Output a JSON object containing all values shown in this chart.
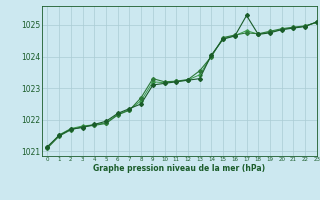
{
  "bg_color": "#cce8f0",
  "grid_color": "#aaccd4",
  "line_color_dark": "#1a5c2a",
  "line_color_mid": "#2d7a3a",
  "line_color_light": "#3a9a4a",
  "xlabel": "Graphe pression niveau de la mer (hPa)",
  "xlim": [
    -0.5,
    23
  ],
  "ylim": [
    1020.85,
    1025.6
  ],
  "yticks": [
    1021,
    1022,
    1023,
    1024,
    1025
  ],
  "xticks": [
    0,
    1,
    2,
    3,
    4,
    5,
    6,
    7,
    8,
    9,
    10,
    11,
    12,
    13,
    14,
    15,
    16,
    17,
    18,
    19,
    20,
    21,
    22,
    23
  ],
  "series1": [
    1021.15,
    1021.5,
    1021.7,
    1021.75,
    1021.85,
    1021.95,
    1022.2,
    1022.35,
    1022.5,
    1023.1,
    1023.15,
    1023.2,
    1023.25,
    1023.3,
    1024.05,
    1024.55,
    1024.65,
    1025.3,
    1024.7,
    1024.75,
    1024.85,
    1024.9,
    1024.95,
    1025.1
  ],
  "series2": [
    1021.1,
    1021.48,
    1021.68,
    1021.78,
    1021.82,
    1021.88,
    1022.15,
    1022.3,
    1022.7,
    1023.3,
    1023.2,
    1023.22,
    1023.27,
    1023.55,
    1024.0,
    1024.6,
    1024.68,
    1024.75,
    1024.72,
    1024.8,
    1024.88,
    1024.93,
    1024.97,
    1025.08
  ],
  "series3": [
    1021.12,
    1021.52,
    1021.72,
    1021.8,
    1021.84,
    1021.9,
    1022.17,
    1022.32,
    1022.6,
    1023.2,
    1023.17,
    1023.21,
    1023.26,
    1023.42,
    1024.02,
    1024.57,
    1024.66,
    1024.82,
    1024.71,
    1024.77,
    1024.86,
    1024.91,
    1024.96,
    1025.09
  ]
}
